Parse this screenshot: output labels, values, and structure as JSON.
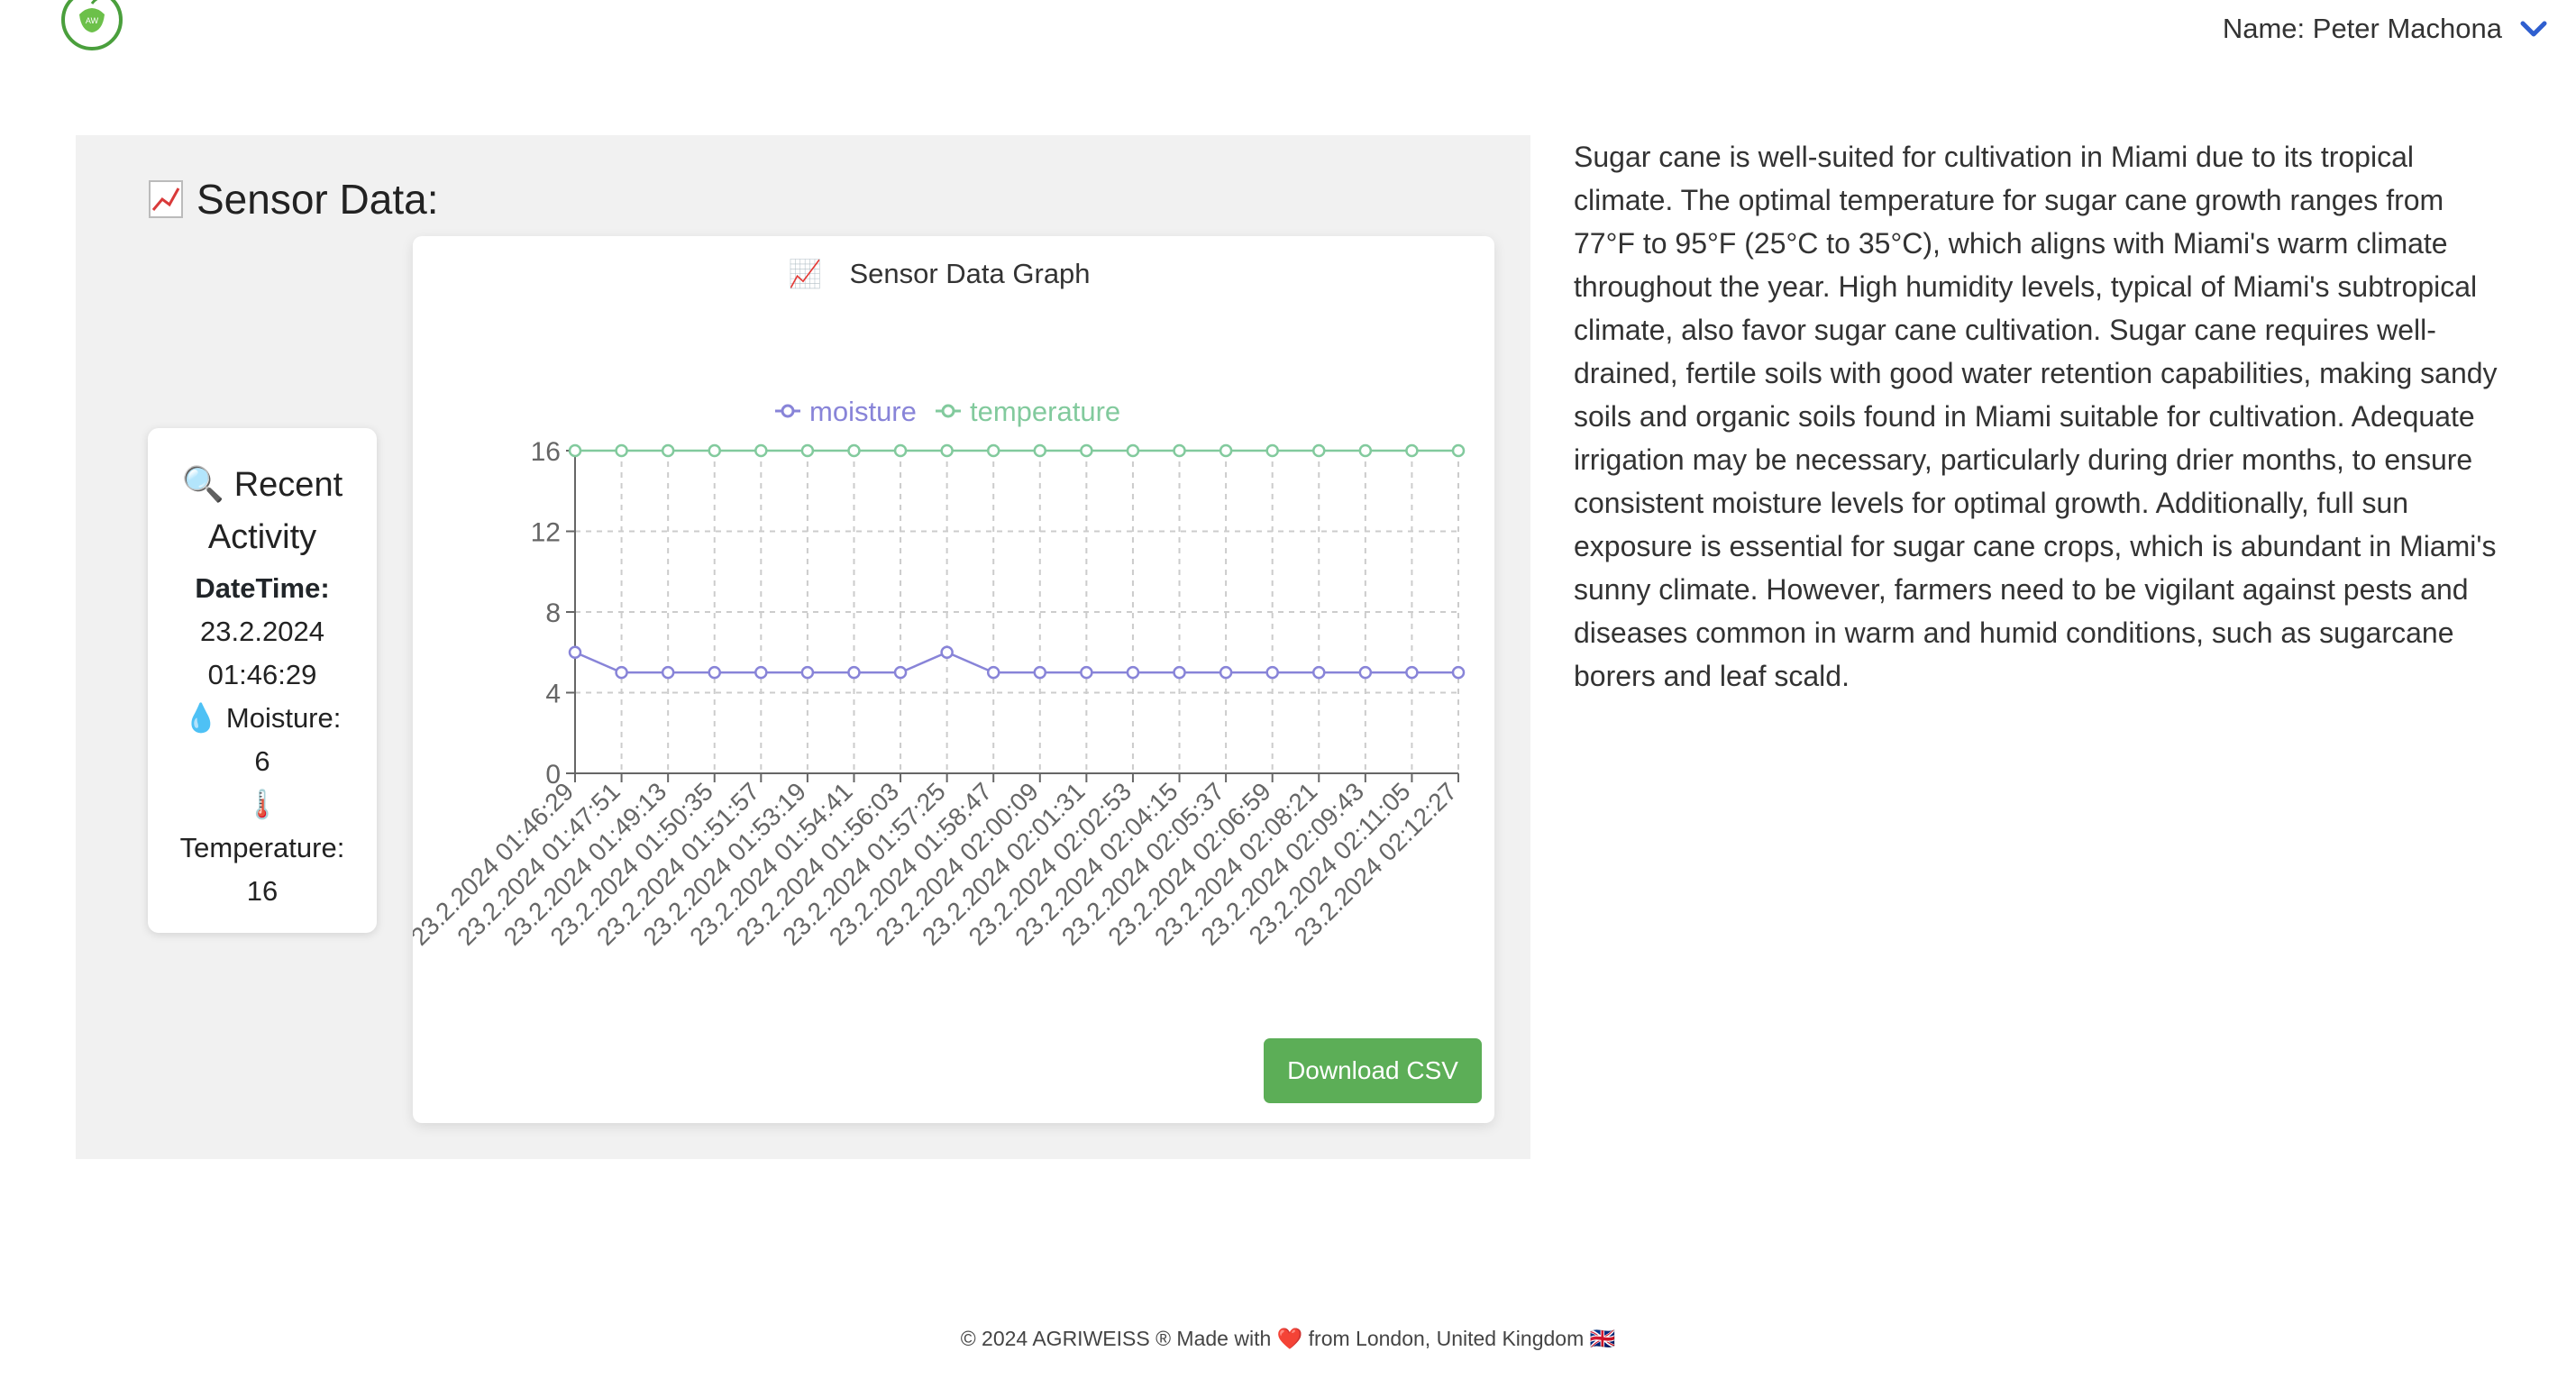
{
  "header": {
    "user_name": "Name: Peter Machona",
    "logo_icon": "apple-leaf-logo",
    "dropdown_icon": "chevron-down-icon",
    "accent": "#2f5fcf"
  },
  "sensor_section": {
    "title": "Sensor Data:",
    "title_icon": "chart-increasing-icon"
  },
  "recent_activity": {
    "title": "Recent Activity",
    "title_icon": "magnifier-icon",
    "datetime_label": "DateTime:",
    "datetime_date": "23.2.2024",
    "datetime_time": "01:46:29",
    "moisture_icon": "droplet-icon",
    "moisture_label": "Moisture:",
    "moisture_value": "6",
    "temperature_icon": "thermometer-icon",
    "temperature_label": "Temperature:",
    "temperature_value": "16"
  },
  "download_button": "Download CSV",
  "description": "Sugar cane is well-suited for cultivation in Miami due to its tropical climate. The optimal temperature for sugar cane growth ranges from 77°F to 95°F (25°C to 35°C), which aligns with Miami's warm climate throughout the year. High humidity levels, typical of Miami's subtropical climate, also favor sugar cane cultivation. Sugar cane requires well-drained, fertile soils with good water retention capabilities, making sandy soils and organic soils found in Miami suitable for cultivation. Adequate irrigation may be necessary, particularly during drier months, to ensure consistent moisture levels for optimal growth. Additionally, full sun exposure is essential for sugar cane crops, which is abundant in Miami's sunny climate. However, farmers need to be vigilant against pests and diseases common in warm and humid conditions, such as sugarcane borers and leaf scald.",
  "footer": {
    "text": "© 2024 AGRIWEISS ® Made with ❤️ from London, United Kingdom 🇬🇧"
  },
  "chart_data": {
    "type": "line",
    "title": "Sensor Data Graph",
    "title_icon": "chart-increasing-icon",
    "legend_position": "top",
    "grid": true,
    "ylim": [
      0,
      16
    ],
    "yticks": [
      0,
      4,
      8,
      12,
      16
    ],
    "categories": [
      "23.2.2024 01:46:29",
      "23.2.2024 01:47:51",
      "23.2.2024 01:49:13",
      "23.2.2024 01:50:35",
      "23.2.2024 01:51:57",
      "23.2.2024 01:53:19",
      "23.2.2024 01:54:41",
      "23.2.2024 01:56:03",
      "23.2.2024 01:57:25",
      "23.2.2024 01:58:47",
      "23.2.2024 02:00:09",
      "23.2.2024 02:01:31",
      "23.2.2024 02:02:53",
      "23.2.2024 02:04:15",
      "23.2.2024 02:05:37",
      "23.2.2024 02:06:59",
      "23.2.2024 02:08:21",
      "23.2.2024 02:09:43",
      "23.2.2024 02:11:05",
      "23.2.2024 02:12:27"
    ],
    "series": [
      {
        "name": "moisture",
        "color": "#8884d8",
        "values": [
          6,
          5,
          5,
          5,
          5,
          5,
          5,
          5,
          6,
          5,
          5,
          5,
          5,
          5,
          5,
          5,
          5,
          5,
          5,
          5
        ]
      },
      {
        "name": "temperature",
        "color": "#82ca9d",
        "values": [
          16,
          16,
          16,
          16,
          16,
          16,
          16,
          16,
          16,
          16,
          16,
          16,
          16,
          16,
          16,
          16,
          16,
          16,
          16,
          16
        ]
      }
    ]
  }
}
